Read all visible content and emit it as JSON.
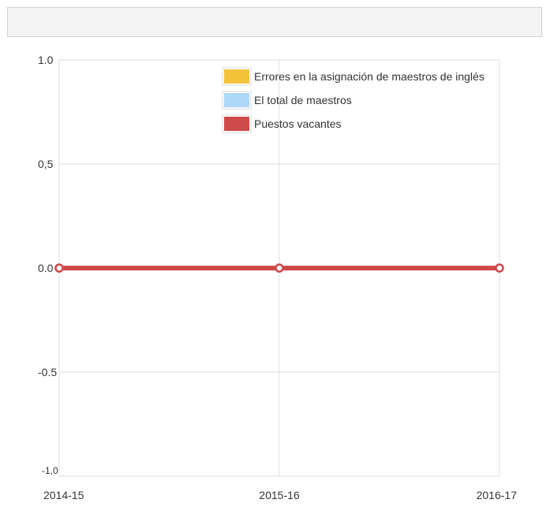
{
  "chart_data": {
    "type": "line",
    "categories": [
      "2014-15",
      "2015-16",
      "2016-17"
    ],
    "y_tick_labels": [
      "1.0",
      "0,5",
      "0.0",
      "-0.5",
      "-1,0"
    ],
    "ylim": [
      -1.0,
      1.0
    ],
    "grid": true,
    "legend_position": "top-right",
    "series": [
      {
        "name": "Errores en la asignación de maestros de inglés",
        "values": [
          0,
          0,
          0
        ],
        "color": "#f2c23a"
      },
      {
        "name": "El total de maestros",
        "values": [
          0,
          0,
          0
        ],
        "color": "#add8f7"
      },
      {
        "name": "Puestos vacantes",
        "values": [
          0,
          0,
          0
        ],
        "color": "#cf4a4a"
      }
    ]
  }
}
